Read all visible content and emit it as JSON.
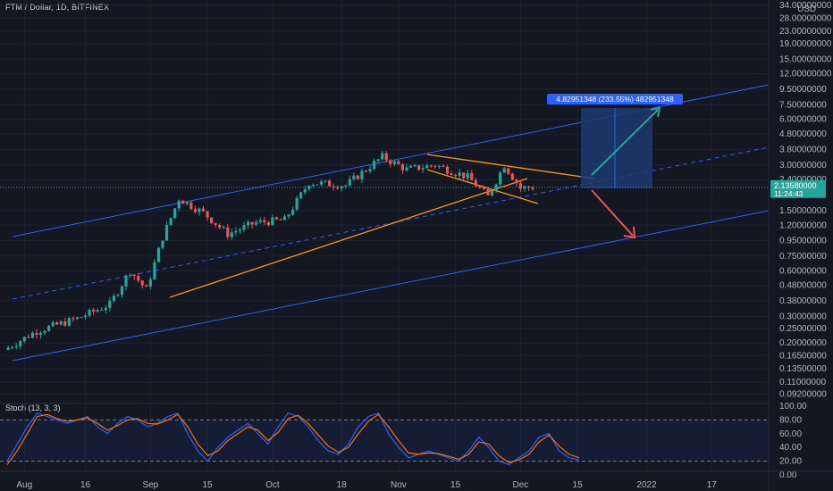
{
  "header": {
    "symbol": "FTM / Dollar, 1D, BITFINEX"
  },
  "stoch": {
    "label": "Stoch (13, 3, 3)",
    "ticks": [
      "100.00",
      "80.00",
      "60.00",
      "40.00",
      "20.00",
      "0.00"
    ],
    "upper_band": 80,
    "lower_band": 20
  },
  "price_axis": {
    "ticks": [
      "34.00000000",
      "28.00000000",
      "23.00000000",
      "19.00000000",
      "15.00000000",
      "12.00000000",
      "9.50000000",
      "7.50000000",
      "6.00000000",
      "4.80000000",
      "3.80000000",
      "3.00000000",
      "2.40000000",
      "1.50000000",
      "1.20000000",
      "0.95000000",
      "0.75000000",
      "0.60000000",
      "0.48000000",
      "0.38000000",
      "0.30000000",
      "0.25000000",
      "0.20000000",
      "0.16500000",
      "0.13500000",
      "0.11000000",
      "0.09200000"
    ],
    "unit": "USD",
    "last_price": "2.13580000",
    "countdown": "11:24:43"
  },
  "time_axis": {
    "ticks": [
      "Aug",
      "16",
      "Sep",
      "15",
      "Oct",
      "18",
      "Nov",
      "15",
      "Dec",
      "15",
      "2022",
      "17"
    ]
  },
  "measure_label": "4.82951348 (233.55%) 482951348",
  "colors": {
    "background": "#131722",
    "up": "#26a69a",
    "down": "#ef5350",
    "channel": "#2962ff",
    "trend": "#ff9800",
    "measure_fill": "#1e3a6e",
    "stoch_k": "#2962ff",
    "stoch_d": "#ff6d00",
    "last_price_bg": "#26a69a"
  },
  "chart_data": {
    "type": "candlestick",
    "title": "FTM / Dollar, 1D, BITFINEX",
    "xlabel": "",
    "ylabel": "",
    "y_scale": "log",
    "ylim": [
      0.09,
      34
    ],
    "series": [
      {
        "name": "",
        "trend": [
          {
            "date": "2021-07-27",
            "close": 0.18
          },
          {
            "date": "2021-08-04",
            "close": 0.24
          },
          {
            "date": "2021-08-14",
            "close": 0.29
          },
          {
            "date": "2021-08-22",
            "close": 0.36
          },
          {
            "date": "2021-08-27",
            "close": 0.6
          },
          {
            "date": "2021-08-31",
            "close": 0.45
          },
          {
            "date": "2021-09-04",
            "close": 1.0
          },
          {
            "date": "2021-09-08",
            "close": 1.8
          },
          {
            "date": "2021-09-14",
            "close": 1.45
          },
          {
            "date": "2021-09-20",
            "close": 1.05
          },
          {
            "date": "2021-09-27",
            "close": 1.25
          },
          {
            "date": "2021-10-04",
            "close": 1.3
          },
          {
            "date": "2021-10-10",
            "close": 2.3
          },
          {
            "date": "2021-10-19",
            "close": 2.2
          },
          {
            "date": "2021-10-28",
            "close": 3.4
          },
          {
            "date": "2021-11-03",
            "close": 2.8
          },
          {
            "date": "2021-11-10",
            "close": 3.0
          },
          {
            "date": "2021-11-18",
            "close": 2.5
          },
          {
            "date": "2021-11-23",
            "close": 1.85
          },
          {
            "date": "2021-11-27",
            "close": 3.0
          },
          {
            "date": "2021-12-01",
            "close": 2.1
          },
          {
            "date": "2021-12-04",
            "close": 2.14
          }
        ]
      }
    ],
    "stoch_k": [
      20,
      45,
      70,
      90,
      85,
      80,
      75,
      80,
      85,
      70,
      60,
      75,
      85,
      80,
      70,
      75,
      85,
      90,
      60,
      35,
      20,
      40,
      55,
      65,
      75,
      60,
      45,
      70,
      90,
      85,
      70,
      50,
      35,
      30,
      45,
      70,
      85,
      90,
      60,
      40,
      25,
      30,
      35,
      30,
      25,
      20,
      35,
      55,
      40,
      20,
      15,
      25,
      35,
      55,
      60,
      35,
      25,
      22
    ],
    "stoch_d": [
      15,
      35,
      60,
      85,
      88,
      82,
      78,
      80,
      83,
      75,
      65,
      72,
      80,
      82,
      75,
      74,
      80,
      88,
      70,
      45,
      28,
      35,
      50,
      60,
      70,
      65,
      50,
      62,
      82,
      87,
      75,
      58,
      42,
      33,
      40,
      60,
      78,
      88,
      70,
      50,
      32,
      30,
      32,
      31,
      27,
      23,
      30,
      48,
      45,
      28,
      18,
      22,
      30,
      48,
      58,
      42,
      30,
      25
    ]
  }
}
